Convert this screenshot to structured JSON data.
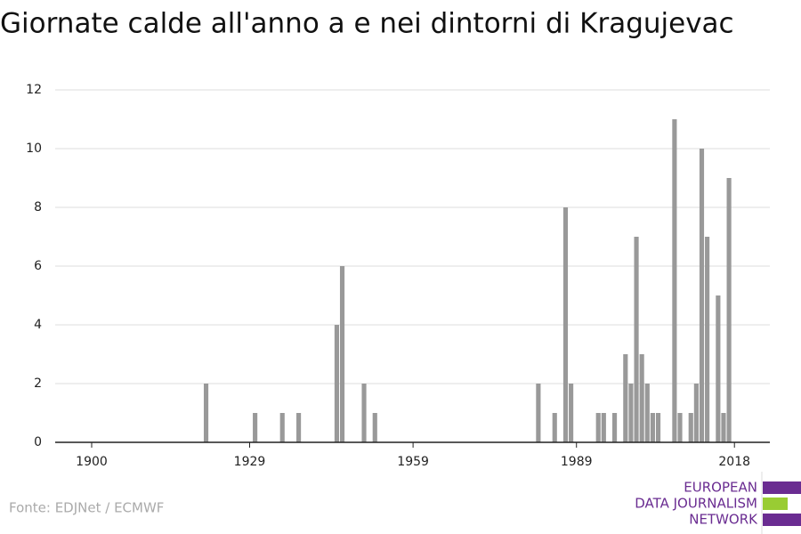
{
  "chart_data": {
    "type": "bar",
    "title": "Giornate calde all'anno a e nei dintorni di Kragujevac",
    "x": [
      1921,
      1930,
      1935,
      1938,
      1945,
      1946,
      1950,
      1952,
      1982,
      1985,
      1987,
      1988,
      1993,
      1994,
      1996,
      1998,
      1999,
      2000,
      2001,
      2002,
      2003,
      2004,
      2007,
      2008,
      2010,
      2011,
      2012,
      2013,
      2015,
      2016,
      2017
    ],
    "values": [
      2,
      1,
      1,
      1,
      4,
      6,
      2,
      1,
      2,
      1,
      8,
      2,
      1,
      1,
      1,
      3,
      2,
      7,
      3,
      2,
      1,
      1,
      11,
      1,
      1,
      2,
      10,
      7,
      5,
      1,
      9
    ],
    "color": "#999999",
    "xlim": [
      1893.3,
      2024.5
    ],
    "xticks": [
      1900,
      1929,
      1959,
      1989,
      2018
    ],
    "ylim": [
      0,
      12
    ],
    "yticks": [
      0,
      2,
      4,
      6,
      8,
      10,
      12
    ],
    "grid": true,
    "source": "Fonte: EDJNet / ECMWF"
  },
  "logo": {
    "lines": [
      "EUROPEAN",
      "DATA JOURNALISM",
      "NETWORK"
    ]
  }
}
